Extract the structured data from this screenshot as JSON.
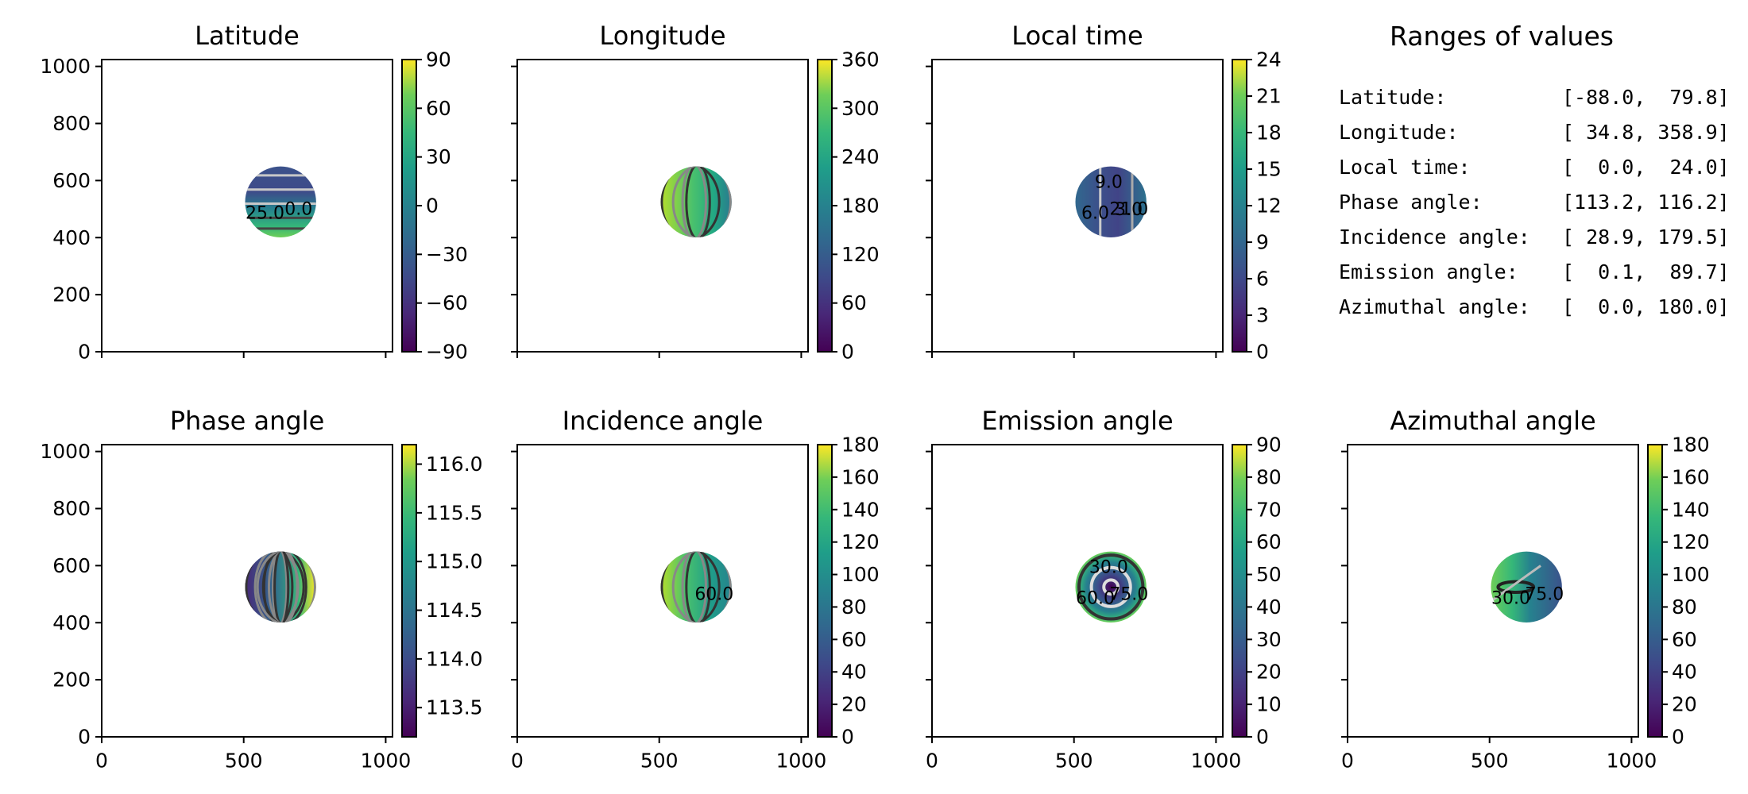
{
  "figure": {
    "panels": [
      {
        "title": "Latitude",
        "colorbar": {
          "ticks": [
            "90",
            "60",
            "30",
            "0",
            "−30",
            "−60",
            "−90"
          ]
        },
        "contour_labels": [
          "0.0",
          "25.0"
        ]
      },
      {
        "title": "Longitude",
        "colorbar": {
          "ticks": [
            "360",
            "300",
            "240",
            "180",
            "120",
            "60",
            "0"
          ]
        },
        "contour_labels": []
      },
      {
        "title": "Local time",
        "colorbar": {
          "ticks": [
            "24",
            "21",
            "18",
            "15",
            "12",
            "9",
            "6",
            "3",
            "0"
          ]
        },
        "contour_labels": [
          "21.0",
          "6.0",
          "9.0",
          "3.0"
        ]
      },
      {
        "title": "Phase angle",
        "colorbar": {
          "ticks": [
            "116.0",
            "115.5",
            "115.0",
            "114.5",
            "114.0",
            "113.5"
          ]
        },
        "contour_labels": []
      },
      {
        "title": "Incidence angle",
        "colorbar": {
          "ticks": [
            "180",
            "160",
            "140",
            "120",
            "100",
            "80",
            "60",
            "40",
            "20",
            "0"
          ]
        },
        "contour_labels": [
          "60.0"
        ]
      },
      {
        "title": "Emission angle",
        "colorbar": {
          "ticks": [
            "90",
            "80",
            "70",
            "60",
            "50",
            "40",
            "30",
            "20",
            "10",
            "0"
          ]
        },
        "contour_labels": [
          "75.0",
          "60.0",
          "30.0"
        ]
      },
      {
        "title": "Azimuthal angle",
        "colorbar": {
          "ticks": [
            "180",
            "160",
            "140",
            "120",
            "100",
            "80",
            "60",
            "40",
            "20",
            "0"
          ]
        },
        "contour_labels": [
          "75.0",
          "30.0"
        ]
      }
    ],
    "ranges": {
      "title": "Ranges of values",
      "rows": [
        {
          "name": "Latitude:",
          "value": "[-88.0,  79.8]"
        },
        {
          "name": "Longitude:",
          "value": "[ 34.8, 358.9]"
        },
        {
          "name": "Local time:",
          "value": "[  0.0,  24.0]"
        },
        {
          "name": "Phase angle:",
          "value": "[113.2, 116.2]"
        },
        {
          "name": "Incidence angle:",
          "value": "[ 28.9, 179.5]"
        },
        {
          "name": "Emission angle:",
          "value": "[  0.1,  89.7]"
        },
        {
          "name": "Azimuthal angle:",
          "value": "[  0.0, 180.0]"
        }
      ]
    }
  },
  "chart_data": [
    {
      "type": "heatmap",
      "title": "Latitude",
      "x_ticks": [
        "0",
        "500",
        "1000"
      ],
      "y_ticks": [
        "0",
        "200",
        "400",
        "600",
        "800",
        "1000"
      ],
      "xlim": [
        0,
        1024
      ],
      "ylim": [
        0,
        1024
      ],
      "colorbar": [
        -90,
        90
      ],
      "colormap": "viridis",
      "disk": {
        "x": 630,
        "y": 525,
        "r": 125
      },
      "value_range": [
        -88.0,
        79.8
      ],
      "contour_labels": [
        "0.0",
        "25.0"
      ]
    },
    {
      "type": "heatmap",
      "title": "Longitude",
      "x_ticks": [
        "0",
        "500",
        "1000"
      ],
      "xlim": [
        0,
        1024
      ],
      "ylim": [
        0,
        1024
      ],
      "colorbar": [
        0,
        360
      ],
      "colormap": "viridis",
      "disk": {
        "x": 630,
        "y": 525,
        "r": 125
      },
      "value_range": [
        34.8,
        358.9
      ]
    },
    {
      "type": "heatmap",
      "title": "Local time",
      "x_ticks": [
        "0",
        "500",
        "1000"
      ],
      "xlim": [
        0,
        1024
      ],
      "ylim": [
        0,
        1024
      ],
      "colorbar": [
        0,
        24
      ],
      "colormap": "viridis",
      "disk": {
        "x": 630,
        "y": 525,
        "r": 125
      },
      "value_range": [
        0.0,
        24.0
      ],
      "contour_labels": [
        "21.0",
        "6.0",
        "9.0",
        "3.0"
      ]
    },
    {
      "type": "heatmap",
      "title": "Phase angle",
      "x_ticks": [
        "0",
        "500",
        "1000"
      ],
      "y_ticks": [
        "0",
        "200",
        "400",
        "600",
        "800",
        "1000"
      ],
      "xlim": [
        0,
        1024
      ],
      "ylim": [
        0,
        1024
      ],
      "colorbar": [
        113.2,
        116.2
      ],
      "colormap": "viridis",
      "disk": {
        "x": 630,
        "y": 525,
        "r": 125
      },
      "value_range": [
        113.2,
        116.2
      ]
    },
    {
      "type": "heatmap",
      "title": "Incidence angle",
      "x_ticks": [
        "0",
        "500",
        "1000"
      ],
      "xlim": [
        0,
        1024
      ],
      "ylim": [
        0,
        1024
      ],
      "colorbar": [
        0,
        180
      ],
      "colormap": "viridis",
      "disk": {
        "x": 630,
        "y": 525,
        "r": 125
      },
      "value_range": [
        28.9,
        179.5
      ],
      "contour_labels": [
        "60.0"
      ]
    },
    {
      "type": "heatmap",
      "title": "Emission angle",
      "x_ticks": [
        "0",
        "500",
        "1000"
      ],
      "xlim": [
        0,
        1024
      ],
      "ylim": [
        0,
        1024
      ],
      "colorbar": [
        0,
        90
      ],
      "colormap": "viridis",
      "disk": {
        "x": 630,
        "y": 525,
        "r": 125
      },
      "value_range": [
        0.1,
        89.7
      ],
      "contour_labels": [
        "75.0",
        "60.0",
        "30.0"
      ]
    },
    {
      "type": "heatmap",
      "title": "Azimuthal angle",
      "x_ticks": [
        "0",
        "500",
        "1000"
      ],
      "xlim": [
        0,
        1024
      ],
      "ylim": [
        0,
        1024
      ],
      "colorbar": [
        0,
        180
      ],
      "colormap": "viridis",
      "disk": {
        "x": 630,
        "y": 525,
        "r": 125
      },
      "value_range": [
        0.0,
        180.0
      ],
      "contour_labels": [
        "75.0",
        "30.0"
      ]
    }
  ]
}
